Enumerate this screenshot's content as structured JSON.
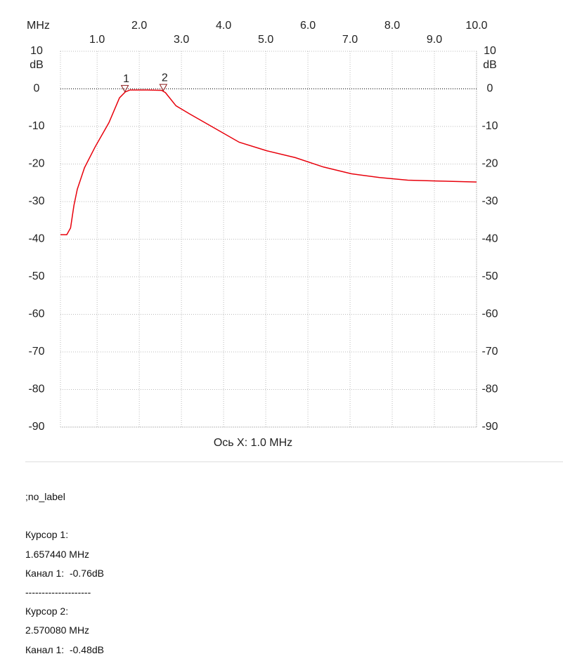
{
  "chart_data": {
    "type": "line",
    "x_unit": "MHz",
    "y_unit": "dB",
    "xlabel": "Ось X: 1.0 MHz",
    "xlim": [
      0.13,
      10
    ],
    "ylim": [
      -90,
      10
    ],
    "xticks": [
      {
        "value": 1,
        "label": "1.0"
      },
      {
        "value": 2,
        "label": "2.0"
      },
      {
        "value": 3,
        "label": "3.0"
      },
      {
        "value": 4,
        "label": "4.0"
      },
      {
        "value": 5,
        "label": "5.0"
      },
      {
        "value": 6,
        "label": "6.0"
      },
      {
        "value": 7,
        "label": "7.0"
      },
      {
        "value": 8,
        "label": "8.0"
      },
      {
        "value": 9,
        "label": "9.0"
      },
      {
        "value": 10,
        "label": "10.0"
      }
    ],
    "yticks": [
      10,
      0,
      -10,
      -20,
      -30,
      -40,
      -50,
      -60,
      -70,
      -80,
      -90
    ],
    "grid": true,
    "series": [
      {
        "name": "Канал 1",
        "color": "#e8000b",
        "x": [
          0.13,
          0.28,
          0.37,
          0.45,
          0.53,
          0.7,
          0.95,
          1.28,
          1.53,
          1.67,
          1.78,
          2.2,
          2.53,
          2.62,
          2.87,
          3.2,
          3.7,
          4.37,
          5.03,
          5.7,
          6.37,
          7.03,
          7.7,
          8.37,
          9.03,
          10
        ],
        "values": [
          -38.8,
          -38.8,
          -37,
          -31,
          -26.7,
          -21,
          -15.5,
          -9,
          -2.4,
          -0.8,
          -0.3,
          -0.3,
          -0.4,
          -1,
          -4.5,
          -6.7,
          -9.9,
          -14.2,
          -16.5,
          -18.3,
          -20.8,
          -22.6,
          -23.6,
          -24.3,
          -24.5,
          -24.8
        ]
      }
    ],
    "markers": [
      {
        "label": "1",
        "x": 1.65744,
        "y": -0.76,
        "color": "#8b1a1a"
      },
      {
        "label": "2",
        "x": 2.57008,
        "y": -0.48,
        "color": "#8b1a1a"
      }
    ]
  },
  "notes": [
    ";no_label",
    "",
    "Курсор 1:",
    "1.657440 MHz",
    "Канал 1:  -0.76dB",
    "--------------------",
    "Курсор 2:",
    "2.570080 MHz",
    "Канал 1:  -0.48dB"
  ]
}
